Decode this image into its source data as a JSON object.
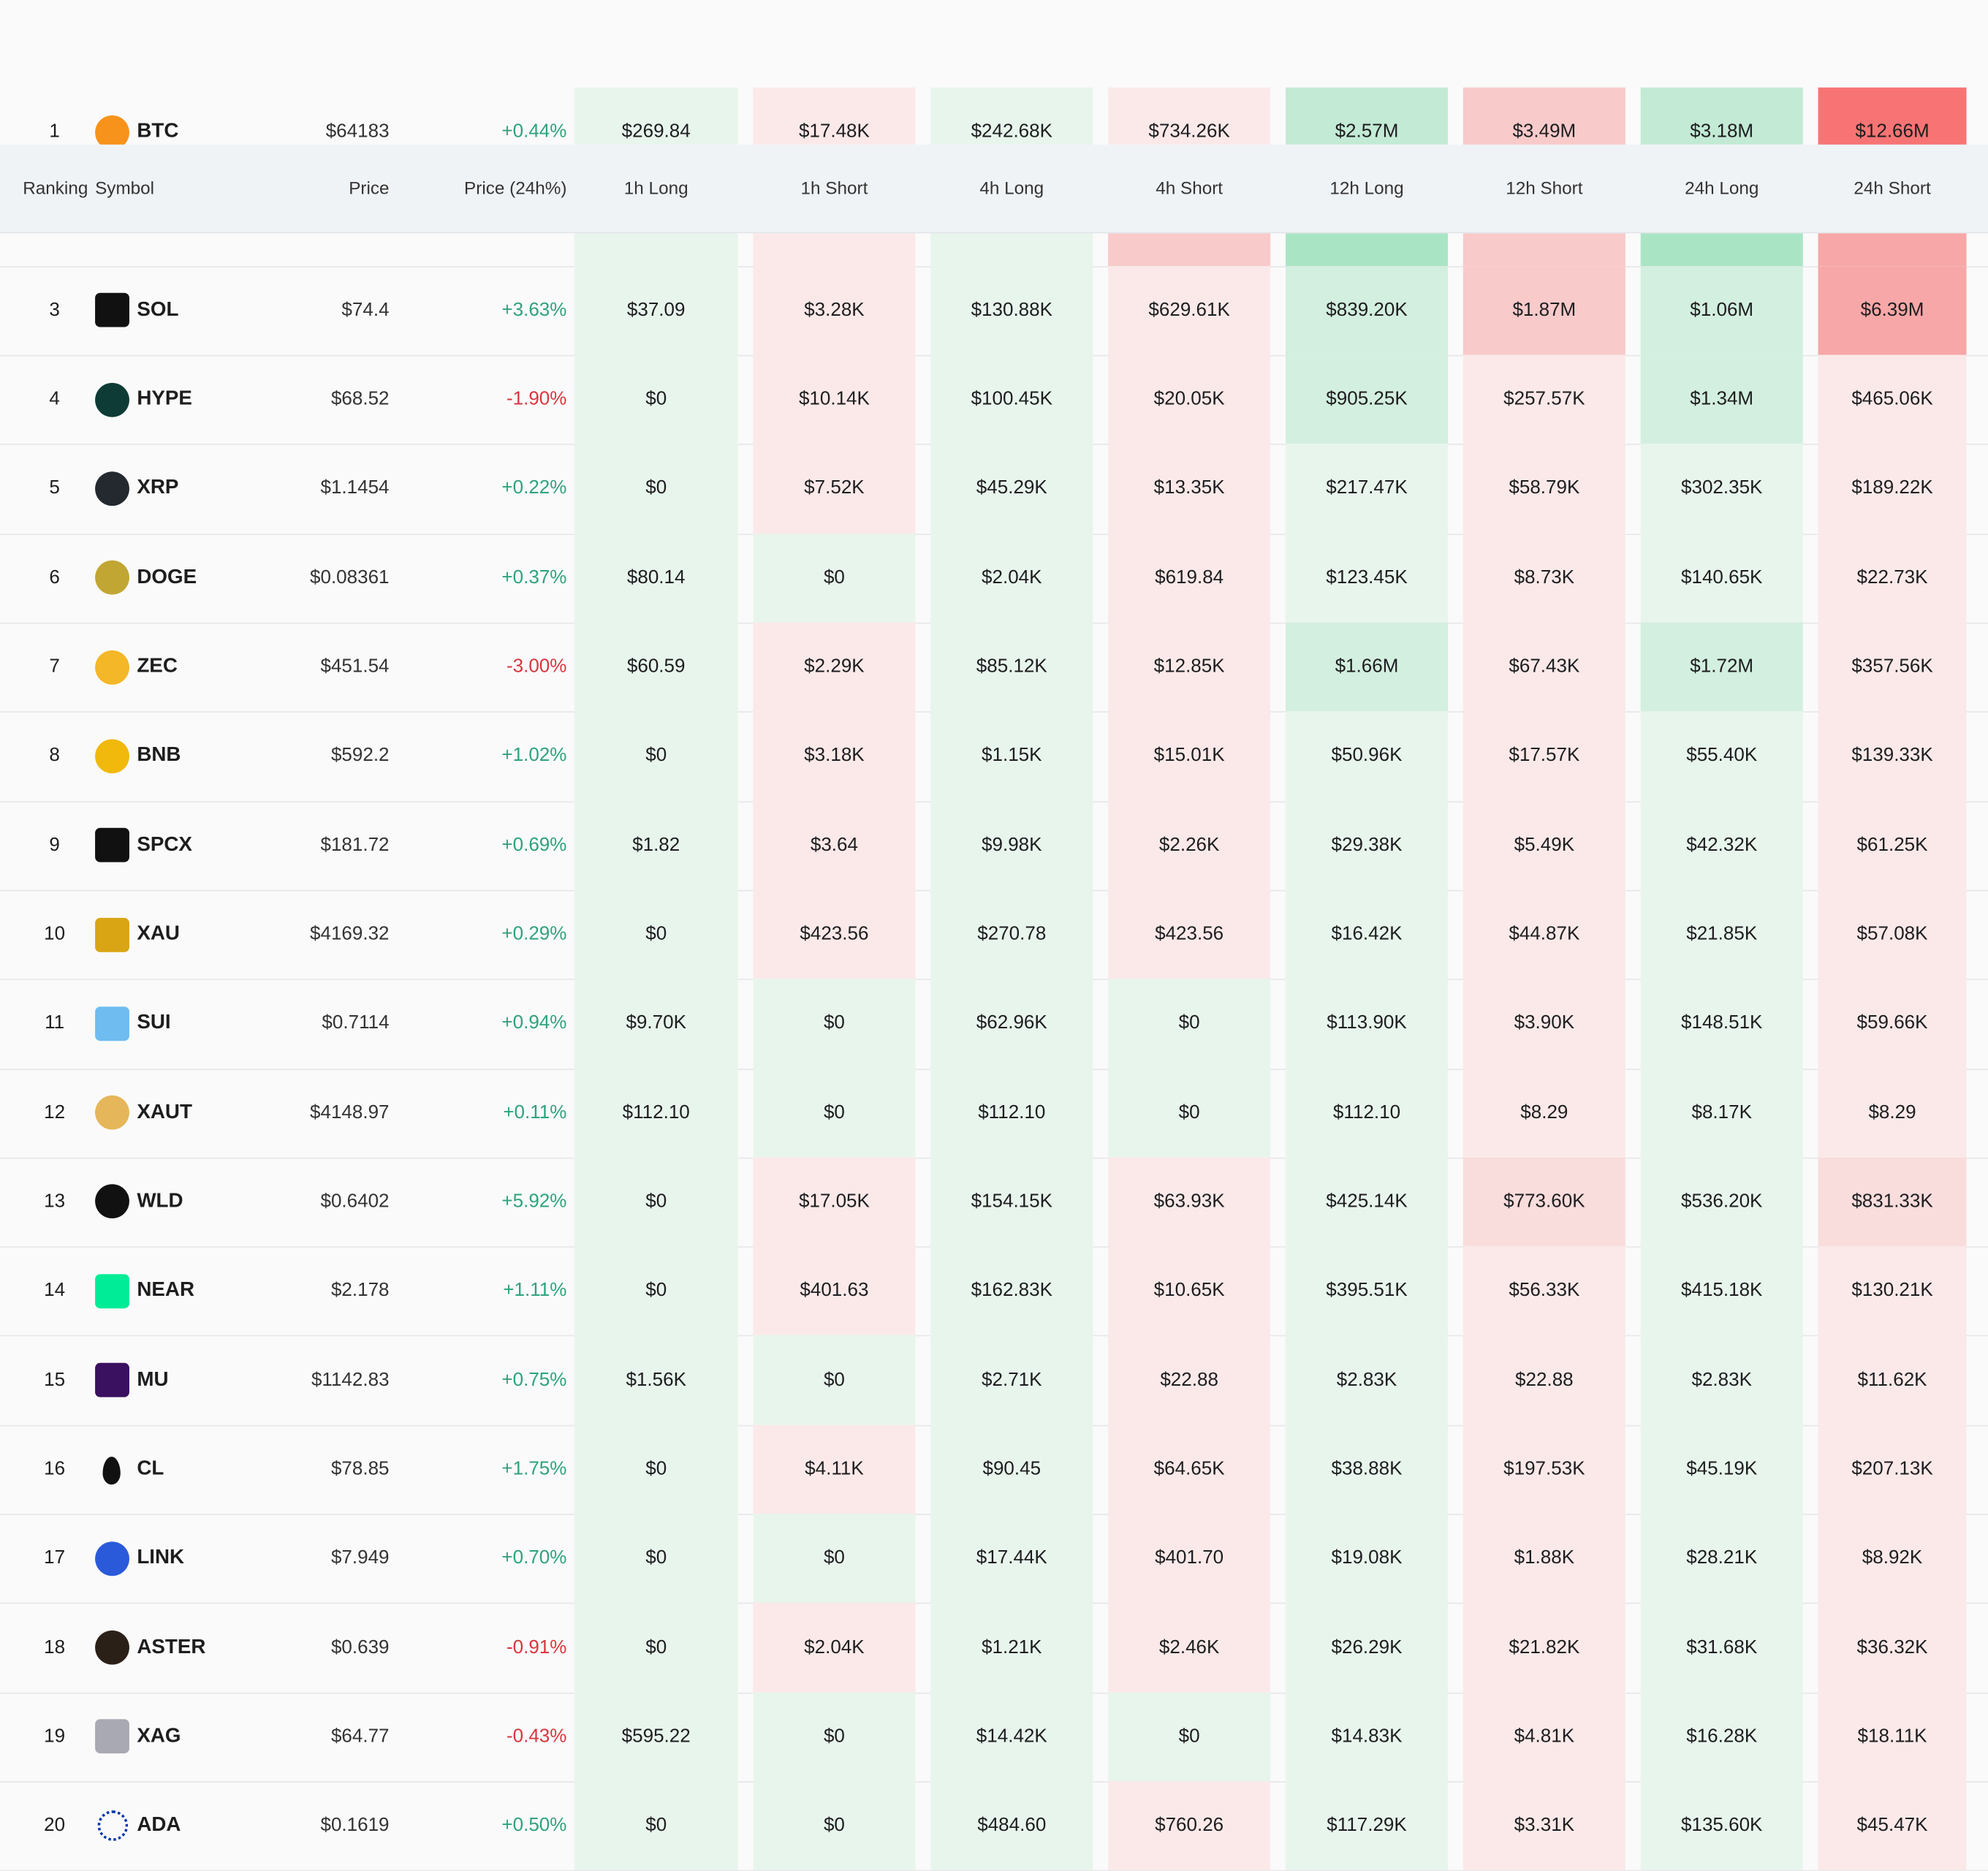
{
  "header": {
    "columns": [
      "Ranking",
      "Symbol",
      "Price",
      "Price (24h%)",
      "1h Long",
      "1h Short",
      "4h Long",
      "4h Short",
      "12h Long",
      "12h Short",
      "24h Long",
      "24h Short"
    ]
  },
  "palette": {
    "g0": "#e8f5ed",
    "g1": "#d3efdf",
    "g2": "#c3ead5",
    "g3": "#a9e5c5",
    "r0": "#fbe9e9",
    "r1": "#f9dcdc",
    "r2": "#f8caca",
    "r3": "#f7a7a7",
    "r4": "#f87474",
    "up": "#2ea37a",
    "down": "#d9363e"
  },
  "rows": [
    {
      "rank": 1,
      "symbol": "BTC",
      "icon": {
        "color": "#f7931a",
        "shape": "circle"
      },
      "price": "$64183",
      "change": "+0.44%",
      "cells": [
        "$269.84",
        "$17.48K",
        "$242.68K",
        "$734.26K",
        "$2.57M",
        "$3.49M",
        "$3.18M",
        "$12.66M"
      ],
      "shades": [
        "g0",
        "r0",
        "g0",
        "r0",
        "g2",
        "r2",
        "g2",
        "r4"
      ]
    },
    {
      "shades": [
        "g0",
        "r0",
        "g0",
        "r2",
        "g3",
        "r2",
        "g3",
        "r3"
      ]
    },
    {
      "rank": 3,
      "symbol": "SOL",
      "icon": {
        "color": "#111111",
        "shape": "square"
      },
      "price": "$74.4",
      "change": "+3.63%",
      "cells": [
        "$37.09",
        "$3.28K",
        "$130.88K",
        "$629.61K",
        "$839.20K",
        "$1.87M",
        "$1.06M",
        "$6.39M"
      ],
      "shades": [
        "g0",
        "r0",
        "g0",
        "r0",
        "g1",
        "r2",
        "g1",
        "r3"
      ]
    },
    {
      "rank": 4,
      "symbol": "HYPE",
      "icon": {
        "color": "#0f3b36",
        "shape": "circle"
      },
      "price": "$68.52",
      "change": "-1.90%",
      "cells": [
        "$0",
        "$10.14K",
        "$100.45K",
        "$20.05K",
        "$905.25K",
        "$257.57K",
        "$1.34M",
        "$465.06K"
      ],
      "shades": [
        "g0",
        "r0",
        "g0",
        "r0",
        "g1",
        "r0",
        "g1",
        "r0"
      ]
    },
    {
      "rank": 5,
      "symbol": "XRP",
      "icon": {
        "color": "#23292f",
        "shape": "circle"
      },
      "price": "$1.1454",
      "change": "+0.22%",
      "cells": [
        "$0",
        "$7.52K",
        "$45.29K",
        "$13.35K",
        "$217.47K",
        "$58.79K",
        "$302.35K",
        "$189.22K"
      ],
      "shades": [
        "g0",
        "r0",
        "g0",
        "r0",
        "g0",
        "r0",
        "g0",
        "r0"
      ]
    },
    {
      "rank": 6,
      "symbol": "DOGE",
      "icon": {
        "color": "#c2a633",
        "shape": "circle"
      },
      "price": "$0.08361",
      "change": "+0.37%",
      "cells": [
        "$80.14",
        "$0",
        "$2.04K",
        "$619.84",
        "$123.45K",
        "$8.73K",
        "$140.65K",
        "$22.73K"
      ],
      "shades": [
        "g0",
        "g0",
        "g0",
        "r0",
        "g0",
        "r0",
        "g0",
        "r0"
      ]
    },
    {
      "rank": 7,
      "symbol": "ZEC",
      "icon": {
        "color": "#f4b728",
        "shape": "circle"
      },
      "price": "$451.54",
      "change": "-3.00%",
      "cells": [
        "$60.59",
        "$2.29K",
        "$85.12K",
        "$12.85K",
        "$1.66M",
        "$67.43K",
        "$1.72M",
        "$357.56K"
      ],
      "shades": [
        "g0",
        "r0",
        "g0",
        "r0",
        "g1",
        "r0",
        "g1",
        "r0"
      ]
    },
    {
      "rank": 8,
      "symbol": "BNB",
      "icon": {
        "color": "#f0b90b",
        "shape": "circle"
      },
      "price": "$592.2",
      "change": "+1.02%",
      "cells": [
        "$0",
        "$3.18K",
        "$1.15K",
        "$15.01K",
        "$50.96K",
        "$17.57K",
        "$55.40K",
        "$139.33K"
      ],
      "shades": [
        "g0",
        "r0",
        "g0",
        "r0",
        "g0",
        "r0",
        "g0",
        "r0"
      ]
    },
    {
      "rank": 9,
      "symbol": "SPCX",
      "icon": {
        "color": "#111111",
        "shape": "square"
      },
      "price": "$181.72",
      "change": "+0.69%",
      "cells": [
        "$1.82",
        "$3.64",
        "$9.98K",
        "$2.26K",
        "$29.38K",
        "$5.49K",
        "$42.32K",
        "$61.25K"
      ],
      "shades": [
        "g0",
        "r0",
        "g0",
        "r0",
        "g0",
        "r0",
        "g0",
        "r0"
      ]
    },
    {
      "rank": 10,
      "symbol": "XAU",
      "icon": {
        "color": "#d9a514",
        "shape": "square"
      },
      "price": "$4169.32",
      "change": "+0.29%",
      "cells": [
        "$0",
        "$423.56",
        "$270.78",
        "$423.56",
        "$16.42K",
        "$44.87K",
        "$21.85K",
        "$57.08K"
      ],
      "shades": [
        "g0",
        "r0",
        "g0",
        "r0",
        "g0",
        "r0",
        "g0",
        "r0"
      ]
    },
    {
      "rank": 11,
      "symbol": "SUI",
      "icon": {
        "color": "#6fbcf0",
        "shape": "square"
      },
      "price": "$0.7114",
      "change": "+0.94%",
      "cells": [
        "$9.70K",
        "$0",
        "$62.96K",
        "$0",
        "$113.90K",
        "$3.90K",
        "$148.51K",
        "$59.66K"
      ],
      "shades": [
        "g0",
        "g0",
        "g0",
        "g0",
        "g0",
        "r0",
        "g0",
        "r0"
      ]
    },
    {
      "rank": 12,
      "symbol": "XAUT",
      "icon": {
        "color": "#e6b65a",
        "shape": "circle"
      },
      "price": "$4148.97",
      "change": "+0.11%",
      "cells": [
        "$112.10",
        "$0",
        "$112.10",
        "$0",
        "$112.10",
        "$8.29",
        "$8.17K",
        "$8.29"
      ],
      "shades": [
        "g0",
        "g0",
        "g0",
        "g0",
        "g0",
        "r0",
        "g0",
        "r0"
      ]
    },
    {
      "rank": 13,
      "symbol": "WLD",
      "icon": {
        "color": "#111111",
        "shape": "circle"
      },
      "price": "$0.6402",
      "change": "+5.92%",
      "cells": [
        "$0",
        "$17.05K",
        "$154.15K",
        "$63.93K",
        "$425.14K",
        "$773.60K",
        "$536.20K",
        "$831.33K"
      ],
      "shades": [
        "g0",
        "r0",
        "g0",
        "r0",
        "g0",
        "r1",
        "g0",
        "r1"
      ]
    },
    {
      "rank": 14,
      "symbol": "NEAR",
      "icon": {
        "color": "#00ec97",
        "shape": "square"
      },
      "price": "$2.178",
      "change": "+1.11%",
      "cells": [
        "$0",
        "$401.63",
        "$162.83K",
        "$10.65K",
        "$395.51K",
        "$56.33K",
        "$415.18K",
        "$130.21K"
      ],
      "shades": [
        "g0",
        "r0",
        "g0",
        "r0",
        "g0",
        "r0",
        "g0",
        "r0"
      ]
    },
    {
      "rank": 15,
      "symbol": "MU",
      "icon": {
        "color": "#3a1060",
        "shape": "square"
      },
      "price": "$1142.83",
      "change": "+0.75%",
      "cells": [
        "$1.56K",
        "$0",
        "$2.71K",
        "$22.88",
        "$2.83K",
        "$22.88",
        "$2.83K",
        "$11.62K"
      ],
      "shades": [
        "g0",
        "g0",
        "g0",
        "r0",
        "g0",
        "r0",
        "g0",
        "r0"
      ]
    },
    {
      "rank": 16,
      "symbol": "CL",
      "icon": {
        "color": "#111111",
        "shape": "drop"
      },
      "price": "$78.85",
      "change": "+1.75%",
      "cells": [
        "$0",
        "$4.11K",
        "$90.45",
        "$64.65K",
        "$38.88K",
        "$197.53K",
        "$45.19K",
        "$207.13K"
      ],
      "shades": [
        "g0",
        "r0",
        "g0",
        "r0",
        "g0",
        "r0",
        "g0",
        "r0"
      ]
    },
    {
      "rank": 17,
      "symbol": "LINK",
      "icon": {
        "color": "#2a5ada",
        "shape": "circle"
      },
      "price": "$7.949",
      "change": "+0.70%",
      "cells": [
        "$0",
        "$0",
        "$17.44K",
        "$401.70",
        "$19.08K",
        "$1.88K",
        "$28.21K",
        "$8.92K"
      ],
      "shades": [
        "g0",
        "g0",
        "g0",
        "r0",
        "g0",
        "r0",
        "g0",
        "r0"
      ]
    },
    {
      "rank": 18,
      "symbol": "ASTER",
      "icon": {
        "color": "#2b2018",
        "shape": "circle"
      },
      "price": "$0.639",
      "change": "-0.91%",
      "cells": [
        "$0",
        "$2.04K",
        "$1.21K",
        "$2.46K",
        "$26.29K",
        "$21.82K",
        "$31.68K",
        "$36.32K"
      ],
      "shades": [
        "g0",
        "r0",
        "g0",
        "r0",
        "g0",
        "r0",
        "g0",
        "r0"
      ]
    },
    {
      "rank": 19,
      "symbol": "XAG",
      "icon": {
        "color": "#a9a9b4",
        "shape": "square"
      },
      "price": "$64.77",
      "change": "-0.43%",
      "cells": [
        "$595.22",
        "$0",
        "$14.42K",
        "$0",
        "$14.83K",
        "$4.81K",
        "$16.28K",
        "$18.11K"
      ],
      "shades": [
        "g0",
        "g0",
        "g0",
        "g0",
        "g0",
        "r0",
        "g0",
        "r0"
      ]
    },
    {
      "rank": 20,
      "symbol": "ADA",
      "icon": {
        "color": "#0033ad",
        "shape": "dots"
      },
      "price": "$0.1619",
      "change": "+0.50%",
      "cells": [
        "$0",
        "$0",
        "$484.60",
        "$760.26",
        "$117.29K",
        "$3.31K",
        "$135.60K",
        "$45.47K"
      ],
      "shades": [
        "g0",
        "g0",
        "g0",
        "r0",
        "g0",
        "r0",
        "g0",
        "r0"
      ]
    }
  ]
}
